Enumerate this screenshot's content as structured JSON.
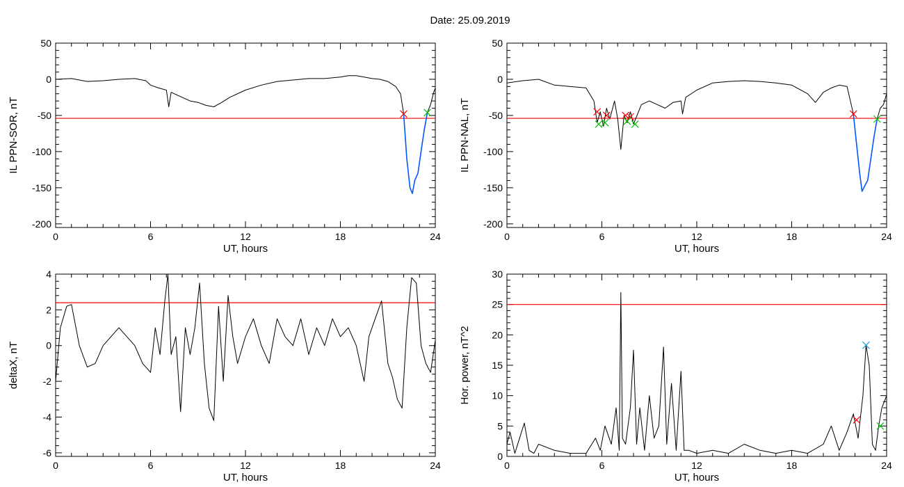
{
  "header": {
    "date_label": "Date:  25.09.2019"
  },
  "colors": {
    "threshold": "#ff0000",
    "storm_trace": "#0055ff",
    "trace": "#000000",
    "onset_marker": "#ff0000",
    "end_marker": "#00c000",
    "peak_marker": "#1f9fd0"
  },
  "chart_data": [
    {
      "id": "il-sor",
      "type": "line",
      "xlabel": "UT, hours",
      "ylabel": "IL PPN-SOR, nT",
      "xlim": [
        0,
        24
      ],
      "ylim": [
        -205,
        50
      ],
      "xticks": [
        0,
        6,
        12,
        18,
        24
      ],
      "yticks": [
        50,
        0,
        -50,
        -100,
        -150,
        -200
      ],
      "threshold": -54,
      "grid": false,
      "series": [
        {
          "style": "black",
          "x": [
            0,
            1,
            2,
            3,
            4,
            5,
            5.7,
            6,
            6.5,
            7,
            7.15,
            7.3,
            8,
            8.5,
            9,
            9.5,
            10,
            10.5,
            11,
            12,
            13,
            14,
            15,
            16,
            17,
            18,
            18.5,
            19,
            19.5,
            20,
            20.5,
            21,
            21.5,
            21.8,
            22.0
          ],
          "y": [
            0,
            1,
            -3,
            -2,
            0,
            1,
            -2,
            -8,
            -12,
            -15,
            -38,
            -18,
            -25,
            -30,
            -32,
            -36,
            -38,
            -32,
            -25,
            -15,
            -8,
            -3,
            -1,
            1,
            1,
            3,
            5,
            5,
            3,
            1,
            0,
            -3,
            -10,
            -20,
            -48
          ]
        },
        {
          "style": "blue",
          "x": [
            22.0,
            22.2,
            22.4,
            22.55,
            22.7,
            22.9,
            23.1,
            23.3,
            23.5
          ],
          "y": [
            -48,
            -110,
            -150,
            -158,
            -140,
            -130,
            -100,
            -70,
            -46
          ]
        },
        {
          "style": "black",
          "x": [
            23.5,
            23.7,
            23.9,
            24
          ],
          "y": [
            -46,
            -35,
            -18,
            -12
          ]
        }
      ],
      "markers": [
        {
          "kind": "onset",
          "x": 22.0,
          "y": -48
        },
        {
          "kind": "end",
          "x": 23.5,
          "y": -46
        }
      ]
    },
    {
      "id": "il-nal",
      "type": "line",
      "xlabel": "UT, hours",
      "ylabel": "IL PPN-NAL, nT",
      "xlim": [
        0,
        24
      ],
      "ylim": [
        -205,
        50
      ],
      "xticks": [
        0,
        6,
        12,
        18,
        24
      ],
      "yticks": [
        50,
        0,
        -50,
        -100,
        -150,
        -200
      ],
      "threshold": -54,
      "grid": false,
      "series": [
        {
          "style": "black",
          "x": [
            0,
            1,
            2,
            3,
            4,
            5,
            5.5,
            5.7,
            5.9,
            6.1,
            6.3,
            6.5,
            6.8,
            7.0,
            7.2,
            7.4,
            7.6,
            7.8,
            8.0,
            8.5,
            9,
            9.5,
            10,
            10.5,
            11,
            11.1,
            11.3,
            12,
            13,
            14,
            15,
            16,
            17,
            18,
            19,
            19.5,
            20,
            20.5,
            21,
            21.5,
            21.9
          ],
          "y": [
            -5,
            -2,
            0,
            -8,
            -10,
            -12,
            -30,
            -60,
            -45,
            -65,
            -40,
            -55,
            -30,
            -55,
            -97,
            -50,
            -60,
            -45,
            -62,
            -35,
            -30,
            -35,
            -40,
            -32,
            -30,
            -48,
            -25,
            -15,
            -5,
            -3,
            -2,
            -3,
            -5,
            -8,
            -20,
            -32,
            -18,
            -12,
            -8,
            -10,
            -48
          ]
        },
        {
          "style": "blue",
          "x": [
            21.9,
            22.1,
            22.3,
            22.45,
            22.6,
            22.8,
            23.0,
            23.2,
            23.4
          ],
          "y": [
            -48,
            -90,
            -130,
            -155,
            -148,
            -140,
            -110,
            -80,
            -55
          ]
        },
        {
          "style": "black",
          "x": [
            23.4,
            23.6,
            23.8,
            24
          ],
          "y": [
            -55,
            -40,
            -35,
            -20
          ]
        }
      ],
      "markers": [
        {
          "kind": "onset",
          "x": 5.7,
          "y": -45
        },
        {
          "kind": "onset",
          "x": 6.3,
          "y": -50
        },
        {
          "kind": "onset",
          "x": 7.5,
          "y": -50
        },
        {
          "kind": "onset",
          "x": 7.8,
          "y": -52
        },
        {
          "kind": "onset",
          "x": 21.9,
          "y": -48
        },
        {
          "kind": "end",
          "x": 5.8,
          "y": -62
        },
        {
          "kind": "end",
          "x": 6.2,
          "y": -60
        },
        {
          "kind": "end",
          "x": 7.6,
          "y": -58
        },
        {
          "kind": "end",
          "x": 8.1,
          "y": -62
        },
        {
          "kind": "end",
          "x": 23.4,
          "y": -55
        }
      ]
    },
    {
      "id": "deltax",
      "type": "line",
      "xlabel": "UT, hours",
      "ylabel": "deltaX, nT",
      "xlim": [
        0,
        24
      ],
      "ylim": [
        -6.2,
        4
      ],
      "xticks": [
        0,
        6,
        12,
        18,
        24
      ],
      "yticks": [
        4,
        2,
        0,
        -2,
        -4,
        -6
      ],
      "threshold": 2.4,
      "grid": false,
      "series": [
        {
          "style": "black",
          "x": [
            0,
            0.3,
            0.7,
            1.0,
            1.5,
            2.0,
            2.5,
            3.0,
            3.5,
            4.0,
            4.5,
            5.0,
            5.5,
            6.0,
            6.3,
            6.6,
            6.9,
            7.1,
            7.3,
            7.6,
            7.9,
            8.2,
            8.5,
            8.8,
            9.1,
            9.4,
            9.7,
            10.0,
            10.3,
            10.6,
            10.9,
            11.2,
            11.5,
            12.0,
            12.5,
            13.0,
            13.5,
            14.0,
            14.5,
            15.0,
            15.5,
            16.0,
            16.5,
            17.0,
            17.5,
            18.0,
            18.5,
            19.0,
            19.5,
            19.8,
            20.2,
            20.6,
            21.0,
            21.3,
            21.6,
            21.9,
            22.2,
            22.5,
            22.8,
            23.1,
            23.4,
            23.7,
            24.0
          ],
          "y": [
            -2,
            1,
            2.2,
            2.3,
            0,
            -1.2,
            -1,
            0,
            0.5,
            1,
            0.5,
            0,
            -1,
            -1.5,
            1,
            -0.5,
            2.5,
            4,
            -0.5,
            0.5,
            -3.7,
            1,
            -0.5,
            1,
            3.5,
            -1,
            -3.5,
            -4.2,
            2.2,
            -2,
            2.8,
            0.5,
            -1,
            0.5,
            1.5,
            0,
            -1,
            1.5,
            0.5,
            0,
            1.5,
            -0.5,
            1,
            0,
            1.5,
            0.5,
            1,
            0,
            -2,
            0.5,
            1.5,
            2.5,
            -1,
            -1.8,
            -3,
            -3.5,
            1,
            3.8,
            3.5,
            0,
            -1,
            -1.5,
            0.3
          ]
        }
      ],
      "markers": []
    },
    {
      "id": "hor-power",
      "type": "line",
      "xlabel": "UT, hours",
      "ylabel": "Hor. power, nT^2",
      "xlim": [
        0,
        24
      ],
      "ylim": [
        0,
        30
      ],
      "xticks": [
        0,
        6,
        12,
        18,
        24
      ],
      "yticks": [
        30,
        25,
        20,
        15,
        10,
        5,
        0
      ],
      "threshold": 25,
      "grid": false,
      "series": [
        {
          "style": "black",
          "x": [
            0,
            0.2,
            0.5,
            0.8,
            1.1,
            1.4,
            1.7,
            2.0,
            3.0,
            4.0,
            5.0,
            5.6,
            5.9,
            6.2,
            6.6,
            6.9,
            7.1,
            7.2,
            7.3,
            7.5,
            7.8,
            8.0,
            8.2,
            8.4,
            8.7,
            9.0,
            9.3,
            9.6,
            9.9,
            10.1,
            10.4,
            10.7,
            11.0,
            11.2,
            11.5,
            12,
            13,
            14,
            15,
            16,
            17,
            18,
            19,
            20,
            20.5,
            21.0,
            21.5,
            21.9,
            22.2,
            22.5,
            22.7,
            22.9,
            23.1,
            23.3,
            23.5,
            23.7,
            24.0
          ],
          "y": [
            2,
            4,
            0.5,
            3,
            5.5,
            1,
            0.5,
            2,
            1,
            0.5,
            0.5,
            3,
            1,
            5,
            2,
            8,
            1,
            27,
            3,
            2,
            8,
            17.5,
            2,
            8,
            1,
            10,
            3,
            5,
            18,
            2,
            12,
            1,
            14,
            1,
            1,
            0.5,
            1,
            0.5,
            2,
            1,
            0.5,
            1,
            0.5,
            2,
            5,
            1,
            4,
            7,
            3,
            10,
            18.3,
            15,
            2,
            1,
            5,
            8,
            10
          ]
        }
      ],
      "markers": [
        {
          "kind": "onset",
          "x": 22.1,
          "y": 6
        },
        {
          "kind": "peak",
          "x": 22.7,
          "y": 18.3
        },
        {
          "kind": "end",
          "x": 23.6,
          "y": 5
        }
      ]
    }
  ]
}
